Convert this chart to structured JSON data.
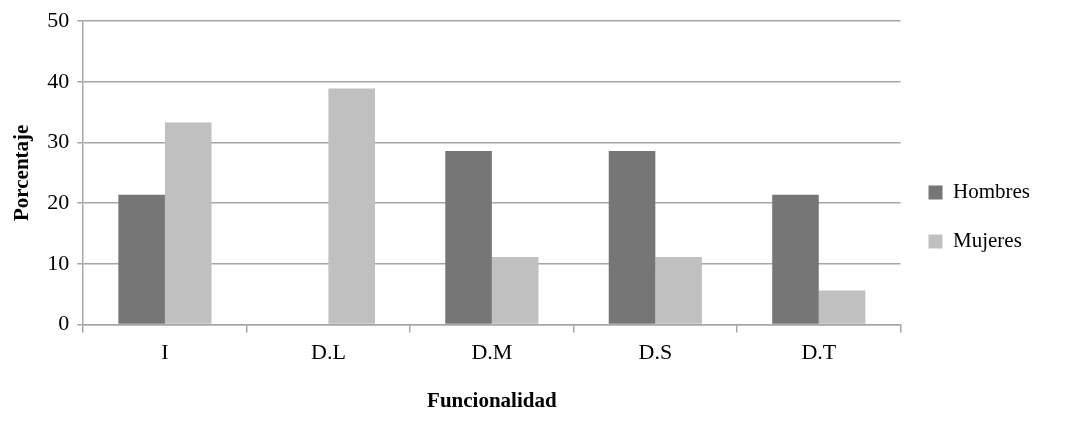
{
  "chart_data": {
    "type": "bar",
    "xlabel": "Funcionalidad",
    "ylabel": "Porcentaje",
    "categories": [
      "I",
      "D.L",
      "D.M",
      "D.S",
      "D.T"
    ],
    "series": [
      {
        "name": "Hombres",
        "color": "#767676",
        "values": [
          21.4,
          0,
          28.6,
          28.6,
          21.4
        ]
      },
      {
        "name": "Mujeres",
        "color": "#c0c0c0",
        "values": [
          33.3,
          38.9,
          11.1,
          11.1,
          5.6
        ]
      }
    ],
    "ylim": [
      0,
      50
    ],
    "yticks": [
      0,
      10,
      20,
      30,
      40,
      50
    ],
    "grid": "y",
    "legend": "right"
  }
}
